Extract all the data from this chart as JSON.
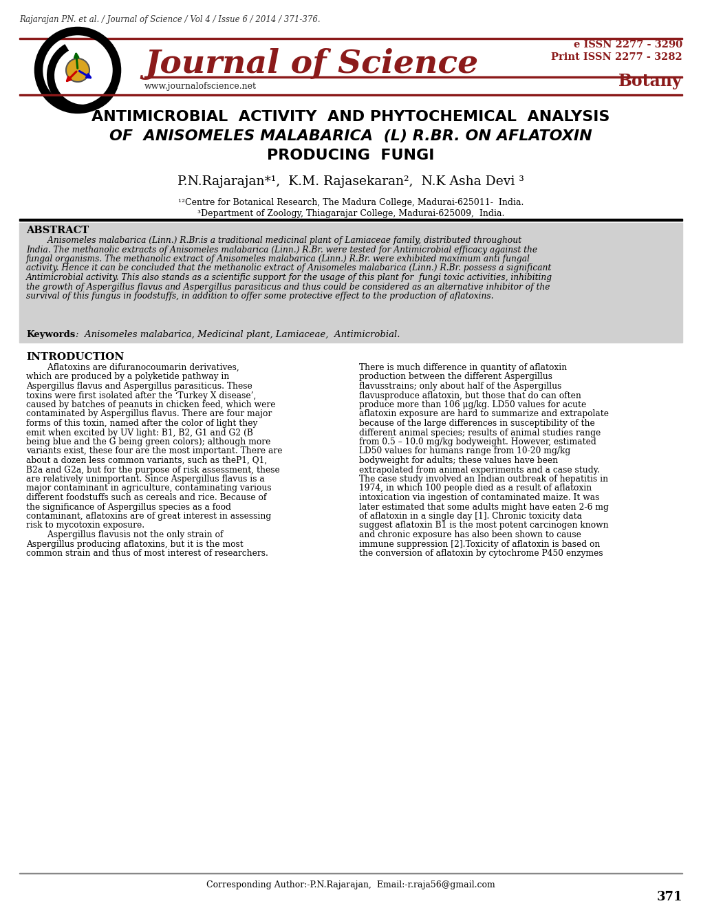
{
  "bg_color": "#ffffff",
  "red_color": "#8B1A1A",
  "citation": "Rajarajan PN. et al. / Journal of Science / Vol 4 / Issue 6 / 2014 / 371-376.",
  "issn_e": "e ISSN 2277 - 3290",
  "issn_p": "Print ISSN 2277 - 3282",
  "section": "Botany",
  "journal_name": "Journal of Science",
  "website": "www.journalofscience.net",
  "article_title_line1": "ANTIMICROBIAL  ACTIVITY  AND PHYTOCHEMICAL  ANALYSIS",
  "article_title_line2": "OF  ANISOMELES MALABARICA  (L) R.BR. ON AFLATOXIN",
  "article_title_line3": "PRODUCING  FUNGI",
  "authors": "P.N.Rajarajan*¹,  K.M. Rajasekaran²,  N.K Asha Devi ³",
  "affil1": "¹²Centre for Botanical Research, The Madura College, Madurai-625011-  India.",
  "affil2": "³Department of Zoology, Thiagarajar College, Madurai-625009,  India.",
  "abstract_title": "ABSTRACT",
  "keywords_label": "Keywords",
  "keywords_text": ":  Anisomeles malabarica, Medicinal plant, Lamiaceae,  Antimicrobial.",
  "intro_title": "INTRODUCTION",
  "footer_text": "Corresponding Author:-P.N.Rajarajan,  Email:-r.raja56@gmail.com",
  "page_number": "371",
  "abstract_bg": "#d0d0d0",
  "abstract_lines": [
    "        Anisomeles malabarica (Linn.) R.Br.is a traditional medicinal plant of Lamiaceae family, distributed throughout",
    "India. The methanolic extracts of Anisomeles malabarica (Linn.) R.Br. were tested for Antimicrobial efficacy against the",
    "fungal organisms. The methanolic extract of Anisomeles malabarica (Linn.) R.Br. were exhibited maximum anti fungal",
    "activity. Hence it can be concluded that the methanolic extract of Anisomeles malabarica (Linn.) R.Br. possess a significant",
    "Antimicrobial activity. This also stands as a scientific support for the usage of this plant for  fungi toxic activities, inhibiting",
    "the growth of Aspergillus flavus and Aspergillus parasiticus and thus could be considered as an alternative inhibitor of the",
    "survival of this fungus in foodstuffs, in addition to offer some protective effect to the production of aflatoxins."
  ],
  "intro_col1_lines": [
    "        Aflatoxins are difuranocoumarin derivatives,",
    "which are produced by a polyketide pathway in",
    "Aspergillus flavus and Aspergillus parasiticus. These",
    "toxins were first isolated after the ‘Turkey X disease’,",
    "caused by batches of peanuts in chicken feed, which were",
    "contaminated by Aspergillus flavus. There are four major",
    "forms of this toxin, named after the color of light they",
    "emit when excited by UV light: B1, B2, G1 and G2 (B",
    "being blue and the G being green colors); although more",
    "variants exist, these four are the most important. There are",
    "about a dozen less common variants, such as theP1, Q1,",
    "B2a and G2a, but for the purpose of risk assessment, these",
    "are relatively unimportant. Since Aspergillus flavus is a",
    "major contaminant in agriculture, contaminating various",
    "different foodstuffs such as cereals and rice. Because of",
    "the significance of Aspergillus species as a food",
    "contaminant, aflatoxins are of great interest in assessing",
    "risk to mycotoxin exposure.",
    "        Aspergillus flavusis not the only strain of",
    "Aspergillus producing aflatoxins, but it is the most",
    "common strain and thus of most interest of researchers."
  ],
  "intro_col2_lines": [
    "There is much difference in quantity of aflatoxin",
    "production between the different Aspergillus",
    "flavusstrains; only about half of the Aspergillus",
    "flavusproduce aflatoxin, but those that do can often",
    "produce more than 106 μg/kg. LD50 values for acute",
    "aflatoxin exposure are hard to summarize and extrapolate",
    "because of the large differences in susceptibility of the",
    "different animal species; results of animal studies range",
    "from 0.5 – 10.0 mg/kg bodyweight. However, estimated",
    "LD50 values for humans range from 10-20 mg/kg",
    "bodyweight for adults; these values have been",
    "extrapolated from animal experiments and a case study.",
    "The case study involved an Indian outbreak of hepatitis in",
    "1974, in which 100 people died as a result of aflatoxin",
    "intoxication via ingestion of contaminated maize. It was",
    "later estimated that some adults might have eaten 2-6 mg",
    "of aflatoxin in a single day [1]. Chronic toxicity data",
    "suggest aflatoxin B1 is the most potent carcinogen known",
    "and chronic exposure has also been shown to cause",
    "immune suppression [2].Toxicity of aflatoxin is based on",
    "the conversion of aflatoxin by cytochrome P450 enzymes"
  ]
}
